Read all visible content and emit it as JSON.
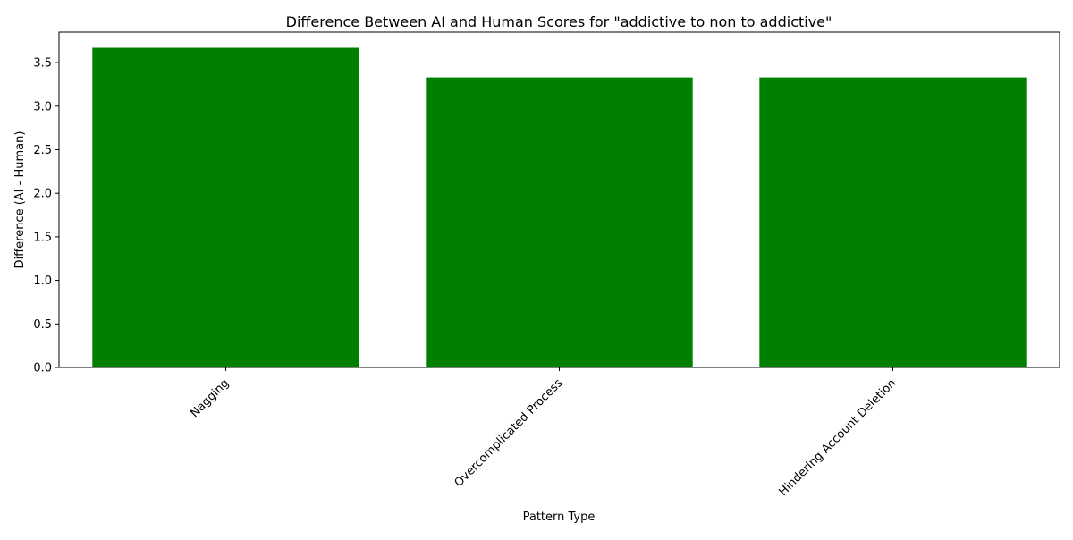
{
  "chart_data": {
    "type": "bar",
    "title": "Difference Between AI and Human Scores for \"addictive to non to addictive\"",
    "xlabel": "Pattern Type",
    "ylabel": "Difference (AI - Human)",
    "categories": [
      "Nagging",
      "Overcomplicated Process",
      "Hindering Account Deletion"
    ],
    "values": [
      3.67,
      3.33,
      3.33
    ],
    "ylim": [
      0,
      3.85
    ],
    "yticks": [
      0.0,
      0.5,
      1.0,
      1.5,
      2.0,
      2.5,
      3.0,
      3.5
    ],
    "ytick_labels": [
      "0.0",
      "0.5",
      "1.0",
      "1.5",
      "2.0",
      "2.5",
      "3.0",
      "3.5"
    ],
    "grid": false,
    "legend": "none",
    "bar_color": "#008000"
  }
}
